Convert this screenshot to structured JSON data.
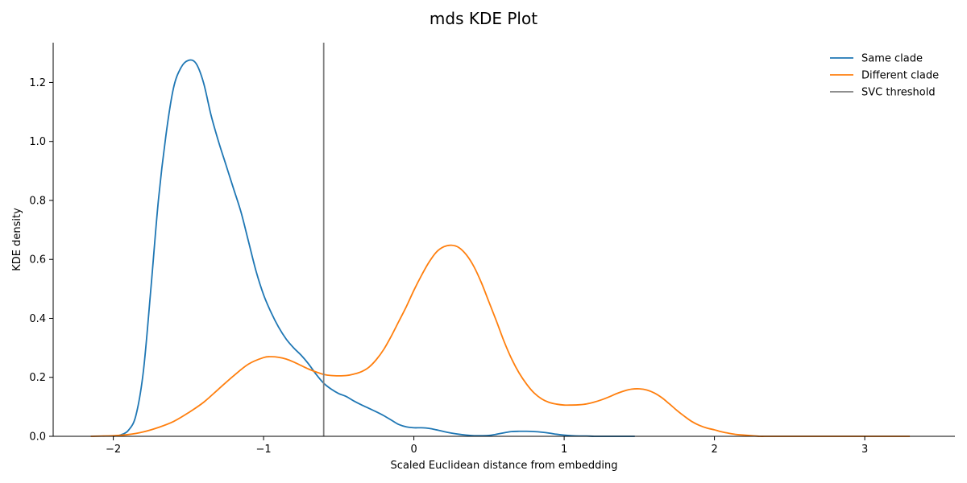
{
  "chart_data": {
    "type": "line",
    "title": "mds KDE Plot",
    "xlabel": "Scaled Euclidean distance from embedding",
    "ylabel": "KDE density",
    "xlim": [
      -2.4,
      3.6
    ],
    "ylim": [
      0,
      1.335
    ],
    "xticks": [
      -2,
      -1,
      0,
      1,
      2,
      3
    ],
    "xtick_labels": [
      "−2",
      "−1",
      "0",
      "1",
      "2",
      "3"
    ],
    "yticks": [
      0.0,
      0.2,
      0.4,
      0.6,
      0.8,
      1.0,
      1.2
    ],
    "ytick_labels": [
      "0.0",
      "0.2",
      "0.4",
      "0.6",
      "0.8",
      "1.0",
      "1.2"
    ],
    "grid": false,
    "legend_position": "top-right",
    "series": [
      {
        "name": "Same clade",
        "color": "#1f77b4",
        "x": [
          -2.0,
          -1.95,
          -1.9,
          -1.85,
          -1.8,
          -1.75,
          -1.7,
          -1.65,
          -1.6,
          -1.55,
          -1.5,
          -1.45,
          -1.4,
          -1.35,
          -1.3,
          -1.25,
          -1.2,
          -1.15,
          -1.1,
          -1.05,
          -1.0,
          -0.95,
          -0.9,
          -0.85,
          -0.8,
          -0.75,
          -0.7,
          -0.65,
          -0.6,
          -0.55,
          -0.5,
          -0.45,
          -0.4,
          -0.35,
          -0.3,
          -0.25,
          -0.2,
          -0.15,
          -0.1,
          -0.05,
          0.0,
          0.05,
          0.1,
          0.15,
          0.2,
          0.25,
          0.3,
          0.35,
          0.4,
          0.45,
          0.5,
          0.55,
          0.6,
          0.65,
          0.7,
          0.75,
          0.8,
          0.85,
          0.9,
          0.95,
          1.0,
          1.05,
          1.1,
          1.15,
          1.2,
          1.25,
          1.3,
          1.35,
          1.4,
          1.47
        ],
        "y": [
          0.0,
          0.005,
          0.02,
          0.07,
          0.22,
          0.5,
          0.8,
          1.02,
          1.18,
          1.25,
          1.275,
          1.265,
          1.2,
          1.09,
          1.0,
          0.92,
          0.84,
          0.76,
          0.66,
          0.56,
          0.48,
          0.42,
          0.37,
          0.33,
          0.3,
          0.275,
          0.245,
          0.21,
          0.18,
          0.16,
          0.145,
          0.135,
          0.12,
          0.107,
          0.095,
          0.083,
          0.07,
          0.055,
          0.04,
          0.032,
          0.029,
          0.029,
          0.027,
          0.022,
          0.016,
          0.011,
          0.007,
          0.004,
          0.002,
          0.002,
          0.003,
          0.007,
          0.012,
          0.016,
          0.017,
          0.017,
          0.016,
          0.014,
          0.011,
          0.007,
          0.004,
          0.002,
          0.001,
          0.001,
          0.0,
          0.0,
          0.0,
          0.0,
          0.0,
          0.0
        ]
      },
      {
        "name": "Different clade",
        "color": "#ff7f0e",
        "x": [
          -2.15,
          -2.0,
          -1.9,
          -1.8,
          -1.7,
          -1.6,
          -1.5,
          -1.4,
          -1.3,
          -1.2,
          -1.1,
          -1.0,
          -0.95,
          -0.9,
          -0.85,
          -0.8,
          -0.75,
          -0.7,
          -0.65,
          -0.6,
          -0.55,
          -0.5,
          -0.45,
          -0.4,
          -0.35,
          -0.3,
          -0.25,
          -0.2,
          -0.15,
          -0.1,
          -0.05,
          0.0,
          0.05,
          0.1,
          0.15,
          0.2,
          0.25,
          0.3,
          0.35,
          0.4,
          0.45,
          0.5,
          0.55,
          0.6,
          0.65,
          0.7,
          0.75,
          0.8,
          0.85,
          0.9,
          0.95,
          1.0,
          1.05,
          1.1,
          1.15,
          1.2,
          1.25,
          1.3,
          1.35,
          1.4,
          1.45,
          1.5,
          1.55,
          1.6,
          1.65,
          1.7,
          1.75,
          1.8,
          1.85,
          1.9,
          1.95,
          2.0,
          2.05,
          2.1,
          2.15,
          2.2,
          2.25,
          2.3,
          2.35,
          2.4,
          2.45,
          2.5,
          2.6,
          2.7,
          2.8,
          2.9,
          3.0,
          3.1,
          3.2,
          3.3
        ],
        "y": [
          0.0,
          0.002,
          0.006,
          0.015,
          0.03,
          0.05,
          0.08,
          0.115,
          0.16,
          0.205,
          0.245,
          0.267,
          0.27,
          0.268,
          0.262,
          0.252,
          0.24,
          0.228,
          0.218,
          0.21,
          0.206,
          0.205,
          0.206,
          0.211,
          0.219,
          0.234,
          0.26,
          0.295,
          0.34,
          0.39,
          0.44,
          0.495,
          0.545,
          0.59,
          0.625,
          0.643,
          0.648,
          0.64,
          0.615,
          0.575,
          0.52,
          0.455,
          0.39,
          0.322,
          0.263,
          0.215,
          0.177,
          0.147,
          0.127,
          0.115,
          0.109,
          0.106,
          0.106,
          0.107,
          0.11,
          0.116,
          0.124,
          0.134,
          0.145,
          0.154,
          0.16,
          0.161,
          0.157,
          0.147,
          0.131,
          0.11,
          0.088,
          0.068,
          0.05,
          0.037,
          0.028,
          0.022,
          0.015,
          0.01,
          0.006,
          0.004,
          0.002,
          0.0,
          0.0,
          0.0,
          0.0,
          0.0,
          0.0,
          0.0,
          0.0,
          0.0,
          0.0,
          0.0,
          0.0,
          0.0
        ]
      }
    ],
    "vlines": [
      {
        "name": "SVC threshold",
        "color": "#7f7f7f",
        "x": -0.6
      }
    ]
  }
}
